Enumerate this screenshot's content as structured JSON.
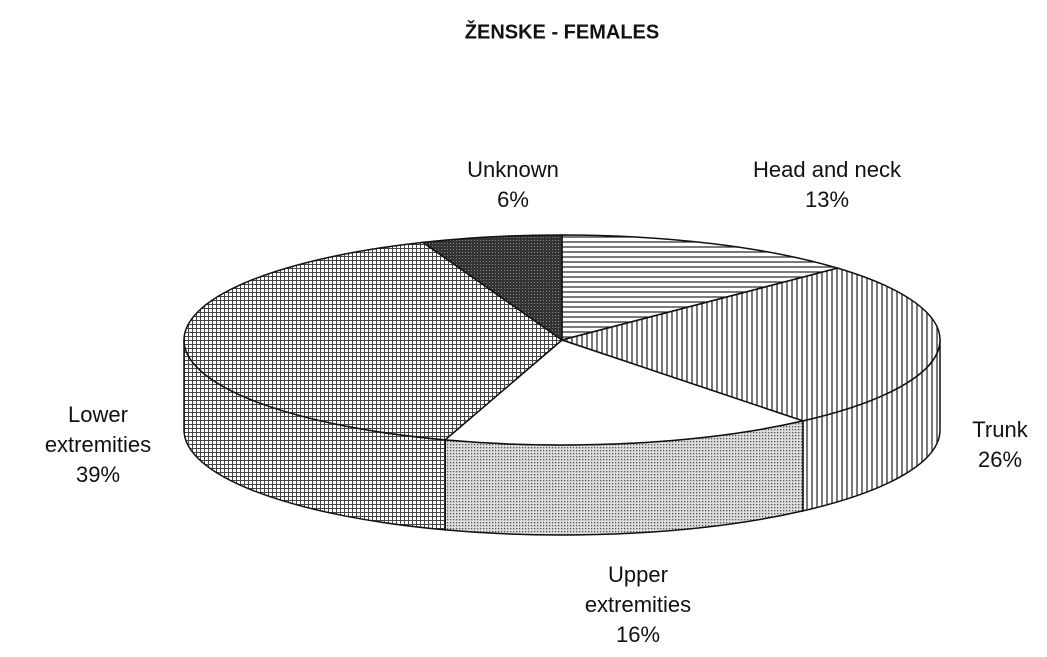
{
  "chart_data": {
    "type": "pie",
    "title": "ŽENSKE - FEMALES",
    "categories": [
      "Head and neck",
      "Trunk",
      "Upper extremities",
      "Lower extremities",
      "Unknown"
    ],
    "values": [
      13,
      26,
      16,
      39,
      6
    ],
    "value_labels": [
      "13%",
      "26%",
      "16%",
      "39%",
      "6%"
    ]
  }
}
